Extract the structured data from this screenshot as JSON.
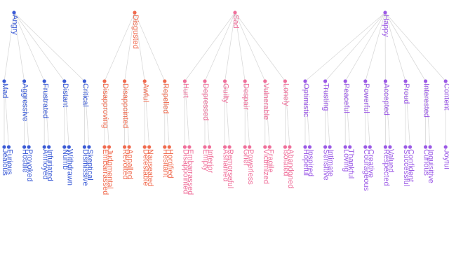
{
  "colors": {
    "Angry": "#3b5bd6",
    "Disgusted": "#f06a4e",
    "Sad": "#ef6f9a",
    "Happy": "#9b59e6",
    "edge": "#d9d9d9"
  },
  "tree": [
    {
      "name": "Angry",
      "children": [
        {
          "name": "Mad",
          "children": [
            "Jealous",
            "Furious"
          ]
        },
        {
          "name": "Aggressive",
          "children": [
            "Hostile",
            "Provoked"
          ]
        },
        {
          "name": "Frustrated",
          "children": [
            "Annoyed",
            "Infuriated"
          ]
        },
        {
          "name": "Distant",
          "children": [
            "Numb",
            "Withdrawn"
          ]
        },
        {
          "name": "Critical",
          "children": [
            "Dismissive",
            "Skeptical"
          ]
        }
      ]
    },
    {
      "name": "Disgusted",
      "children": [
        {
          "name": "Disapproving",
          "children": [
            "Embarrassed",
            "Judgmental"
          ]
        },
        {
          "name": "Disappointed",
          "children": [
            "Revolted",
            "Appalled"
          ]
        },
        {
          "name": "Awful",
          "children": [
            "Detestable",
            "Nauseated"
          ]
        },
        {
          "name": "Repelled",
          "children": [
            "Hesitant",
            "Horrified"
          ]
        }
      ]
    },
    {
      "name": "Sad",
      "children": [
        {
          "name": "Hurt",
          "children": [
            "Disappointed",
            "Embarrassed"
          ]
        },
        {
          "name": "Depressed",
          "children": [
            "Empty",
            "Inferior"
          ]
        },
        {
          "name": "Guilty",
          "children": [
            "Ashamed",
            "Remorseful"
          ]
        },
        {
          "name": "Despair",
          "children": [
            "Grief",
            "Powerless"
          ]
        },
        {
          "name": "Vulnerable",
          "children": [
            "Victimized",
            "Fragile"
          ]
        },
        {
          "name": "Lonely",
          "children": [
            "Isolated",
            "Abandoned"
          ]
        }
      ]
    },
    {
      "name": "Happy",
      "children": [
        {
          "name": "Optimistic",
          "children": [
            "Hopeful",
            "Inspired"
          ]
        },
        {
          "name": "Trusting",
          "children": [
            "Sensitive",
            "Intimate"
          ]
        },
        {
          "name": "Peaceful",
          "children": [
            "Loving",
            "Thankful"
          ]
        },
        {
          "name": "Powerful",
          "children": [
            "Courageous",
            "Creative"
          ]
        },
        {
          "name": "Accepted",
          "children": [
            "Respected",
            "Valued"
          ]
        },
        {
          "name": "Proud",
          "children": [
            "Successful",
            "Confident"
          ]
        },
        {
          "name": "Interested",
          "children": [
            "Curious",
            "Inquisitive"
          ]
        },
        {
          "name": "Content",
          "children": [
            "Joyful"
          ]
        }
      ]
    }
  ]
}
